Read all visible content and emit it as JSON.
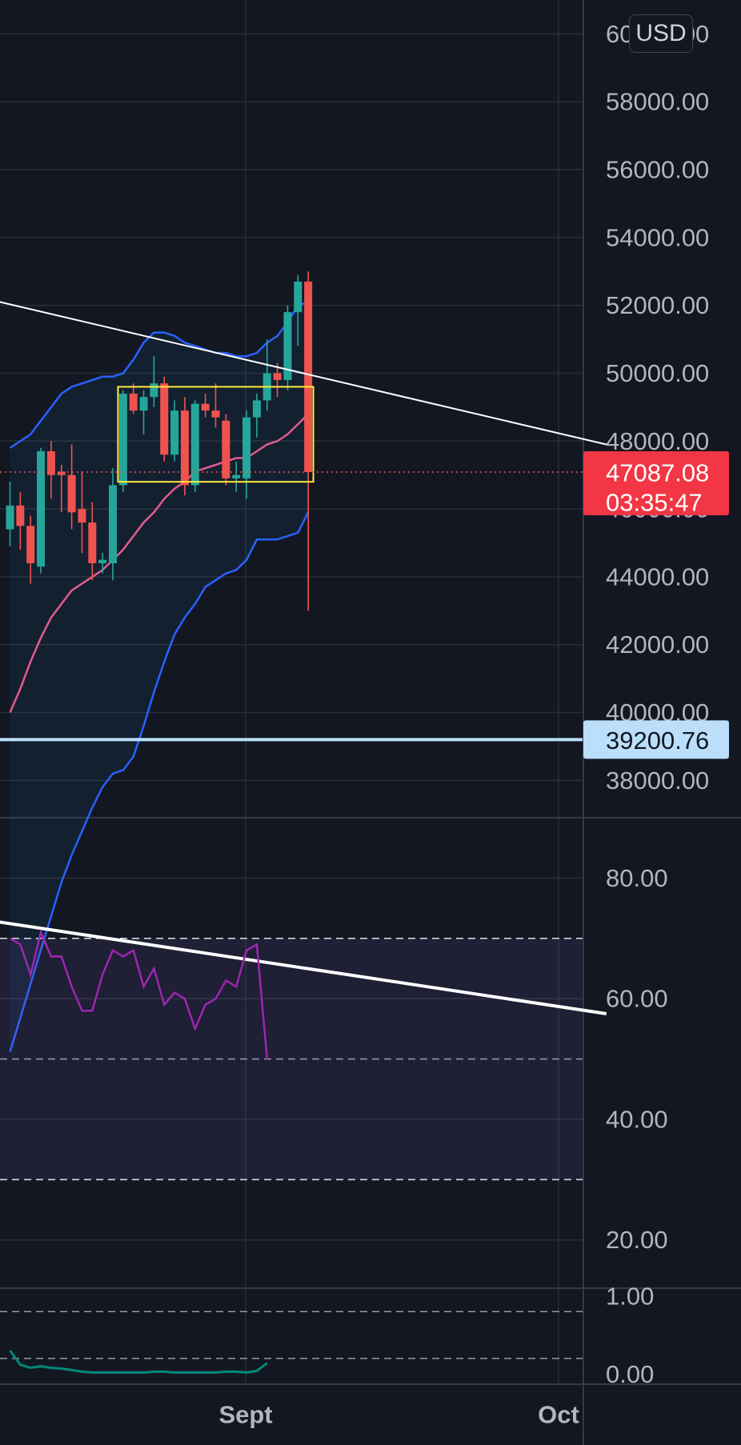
{
  "currency_button": "USD",
  "colors": {
    "background": "#131722",
    "axis_bg": "#131722",
    "grid": "#2a2e39",
    "bull": "#26a69a",
    "bear": "#ef5350",
    "bb_band": "#2962ff",
    "bb_basis": "#e25b8c",
    "rsi_line": "#9c27b0",
    "stoch_line": "#00897b",
    "price_badge": "#f23645",
    "level_badge": "#bbdefb",
    "box": "#ffeb3b",
    "trendline": "#ffffff"
  },
  "chart_data": [
    {
      "type": "candlestick",
      "panel": "price",
      "y_axis_ticks": [
        "60000.00",
        "58000.00",
        "56000.00",
        "54000.00",
        "52000.00",
        "50000.00",
        "48000.00",
        "46000.00",
        "44000.00",
        "42000.00",
        "40000.00",
        "38000.00"
      ],
      "ylim": [
        36900,
        61000
      ],
      "x_ticks": [
        {
          "label": "Sept",
          "index": 23
        },
        {
          "label": "Oct",
          "index": 54
        }
      ],
      "candles": [
        {
          "o": 45400,
          "h": 46800,
          "l": 44900,
          "c": 46100
        },
        {
          "o": 46100,
          "h": 46500,
          "l": 44800,
          "c": 45500
        },
        {
          "o": 45500,
          "h": 45800,
          "l": 43800,
          "c": 44400
        },
        {
          "o": 44300,
          "h": 47800,
          "l": 44100,
          "c": 47700
        },
        {
          "o": 47700,
          "h": 48000,
          "l": 46300,
          "c": 47000
        },
        {
          "o": 47100,
          "h": 47300,
          "l": 45900,
          "c": 47000
        },
        {
          "o": 47000,
          "h": 47900,
          "l": 45400,
          "c": 45900
        },
        {
          "o": 46000,
          "h": 47100,
          "l": 44700,
          "c": 45600
        },
        {
          "o": 45600,
          "h": 46200,
          "l": 43900,
          "c": 44400
        },
        {
          "o": 44400,
          "h": 44700,
          "l": 44100,
          "c": 44500
        },
        {
          "o": 44400,
          "h": 47200,
          "l": 43900,
          "c": 46700
        },
        {
          "o": 46700,
          "h": 49500,
          "l": 46500,
          "c": 49400
        },
        {
          "o": 49400,
          "h": 49700,
          "l": 48800,
          "c": 48900
        },
        {
          "o": 48900,
          "h": 49500,
          "l": 48200,
          "c": 49300
        },
        {
          "o": 49300,
          "h": 50500,
          "l": 49000,
          "c": 49700
        },
        {
          "o": 49700,
          "h": 49900,
          "l": 47400,
          "c": 47600
        },
        {
          "o": 47600,
          "h": 49200,
          "l": 47400,
          "c": 48900
        },
        {
          "o": 48900,
          "h": 49300,
          "l": 46400,
          "c": 46700
        },
        {
          "o": 46700,
          "h": 49200,
          "l": 46500,
          "c": 49100
        },
        {
          "o": 49100,
          "h": 49400,
          "l": 48700,
          "c": 48900
        },
        {
          "o": 48900,
          "h": 49700,
          "l": 48400,
          "c": 48700
        },
        {
          "o": 48600,
          "h": 48800,
          "l": 46700,
          "c": 46900
        },
        {
          "o": 46900,
          "h": 47400,
          "l": 46500,
          "c": 47000
        },
        {
          "o": 46900,
          "h": 48900,
          "l": 46300,
          "c": 48700
        },
        {
          "o": 48700,
          "h": 49400,
          "l": 48100,
          "c": 49200
        },
        {
          "o": 49200,
          "h": 51000,
          "l": 48900,
          "c": 50000
        },
        {
          "o": 50000,
          "h": 50300,
          "l": 49300,
          "c": 49800
        },
        {
          "o": 49800,
          "h": 52000,
          "l": 49500,
          "c": 51800
        },
        {
          "o": 51800,
          "h": 52900,
          "l": 50800,
          "c": 52700
        },
        {
          "o": 52700,
          "h": 53000,
          "l": 43000,
          "c": 47087
        }
      ],
      "bollinger": {
        "upper": [
          47800,
          48000,
          48200,
          48600,
          49000,
          49400,
          49600,
          49700,
          49800,
          49900,
          49900,
          50000,
          50400,
          50900,
          51200,
          51200,
          51100,
          50900,
          50800,
          50700,
          50600,
          50600,
          50500,
          50500,
          50600,
          50900,
          51100,
          51500,
          52000,
          52100
        ],
        "basis": [
          40000,
          40700,
          41500,
          42200,
          42800,
          43200,
          43600,
          43800,
          44000,
          44200,
          44500,
          44800,
          45200,
          45600,
          45900,
          46300,
          46600,
          46800,
          47100,
          47200,
          47300,
          47400,
          47500,
          47500,
          47700,
          47900,
          48000,
          48200,
          48500,
          48800
        ],
        "lower": [
          30000,
          31000,
          32000,
          33000,
          34000,
          35000,
          35800,
          36500,
          37200,
          37800,
          38200,
          38300,
          38700,
          39600,
          40600,
          41500,
          42300,
          42800,
          43200,
          43700,
          43900,
          44100,
          44200,
          44500,
          45100,
          45100,
          45100,
          45200,
          45300,
          45900
        ]
      },
      "box": {
        "x_from": 10.5,
        "x_to": 29.5,
        "y_from": 46800,
        "y_to": 49600
      },
      "trendline": {
        "x1": -8,
        "y1": 52600,
        "x2": 58,
        "y2": 47900
      },
      "last_price": "47087.08",
      "countdown": "03:35:47",
      "horizontal_level": {
        "value": 39200.76,
        "label": "39200.76"
      }
    },
    {
      "type": "line",
      "panel": "rsi",
      "y_axis_ticks": [
        "80.00",
        "60.00",
        "40.00",
        "20.00"
      ],
      "ylim": [
        12,
        90
      ],
      "levels": {
        "upper": 70,
        "middle": 50,
        "lower": 30
      },
      "values": [
        70,
        69,
        64,
        71,
        67,
        67,
        62,
        58,
        58,
        64,
        68,
        67,
        68,
        62,
        65,
        59,
        61,
        60,
        55,
        59,
        60,
        63,
        62,
        68,
        69,
        50
      ],
      "trendline": {
        "x1": -8,
        "y1": 74.5,
        "x2": 58,
        "y2": 57.5
      }
    },
    {
      "type": "line",
      "panel": "stochastic",
      "y_axis_ticks": [
        "1.00",
        "0.00"
      ],
      "ylim": [
        -0.13,
        1.1
      ],
      "levels": {
        "upper": 0.8,
        "lower": 0.2
      },
      "values": [
        0.3,
        0.12,
        0.08,
        0.1,
        0.08,
        0.07,
        0.05,
        0.03,
        0.02,
        0.02,
        0.02,
        0.02,
        0.02,
        0.02,
        0.03,
        0.03,
        0.02,
        0.02,
        0.02,
        0.02,
        0.02,
        0.03,
        0.03,
        0.02,
        0.04,
        0.14
      ]
    }
  ]
}
